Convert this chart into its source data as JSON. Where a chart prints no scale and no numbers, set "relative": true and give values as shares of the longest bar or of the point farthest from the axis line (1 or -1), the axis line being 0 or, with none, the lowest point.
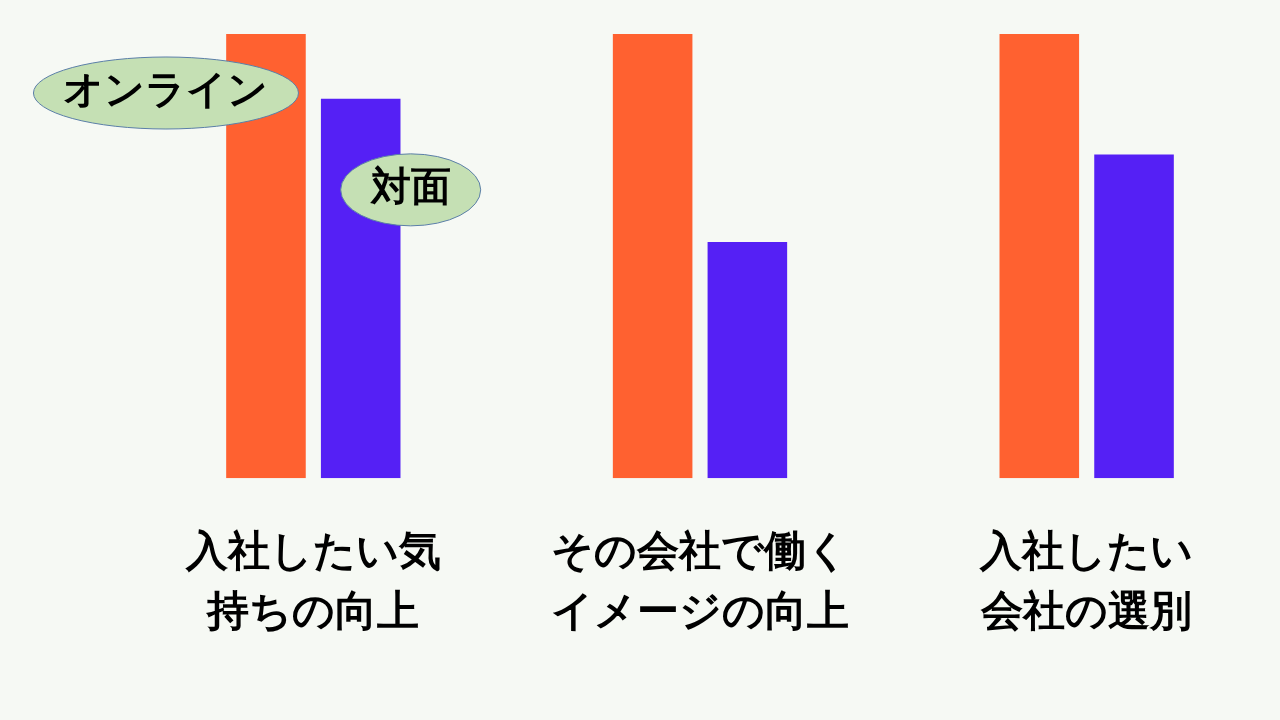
{
  "chart_data": {
    "type": "bar",
    "relative": true,
    "categories": [
      "入社したい気持ちの向上",
      "その会社で働くイメージの向上",
      "入社したい会社の選別"
    ],
    "series": [
      {
        "name": "オンライン",
        "color": "#ff6130",
        "values": [
          1,
          1,
          1
        ]
      },
      {
        "name": "対面",
        "color": "#5520f5",
        "values": [
          0.854,
          0.532,
          0.729
        ]
      }
    ],
    "grid": false,
    "legend": false
  }
}
